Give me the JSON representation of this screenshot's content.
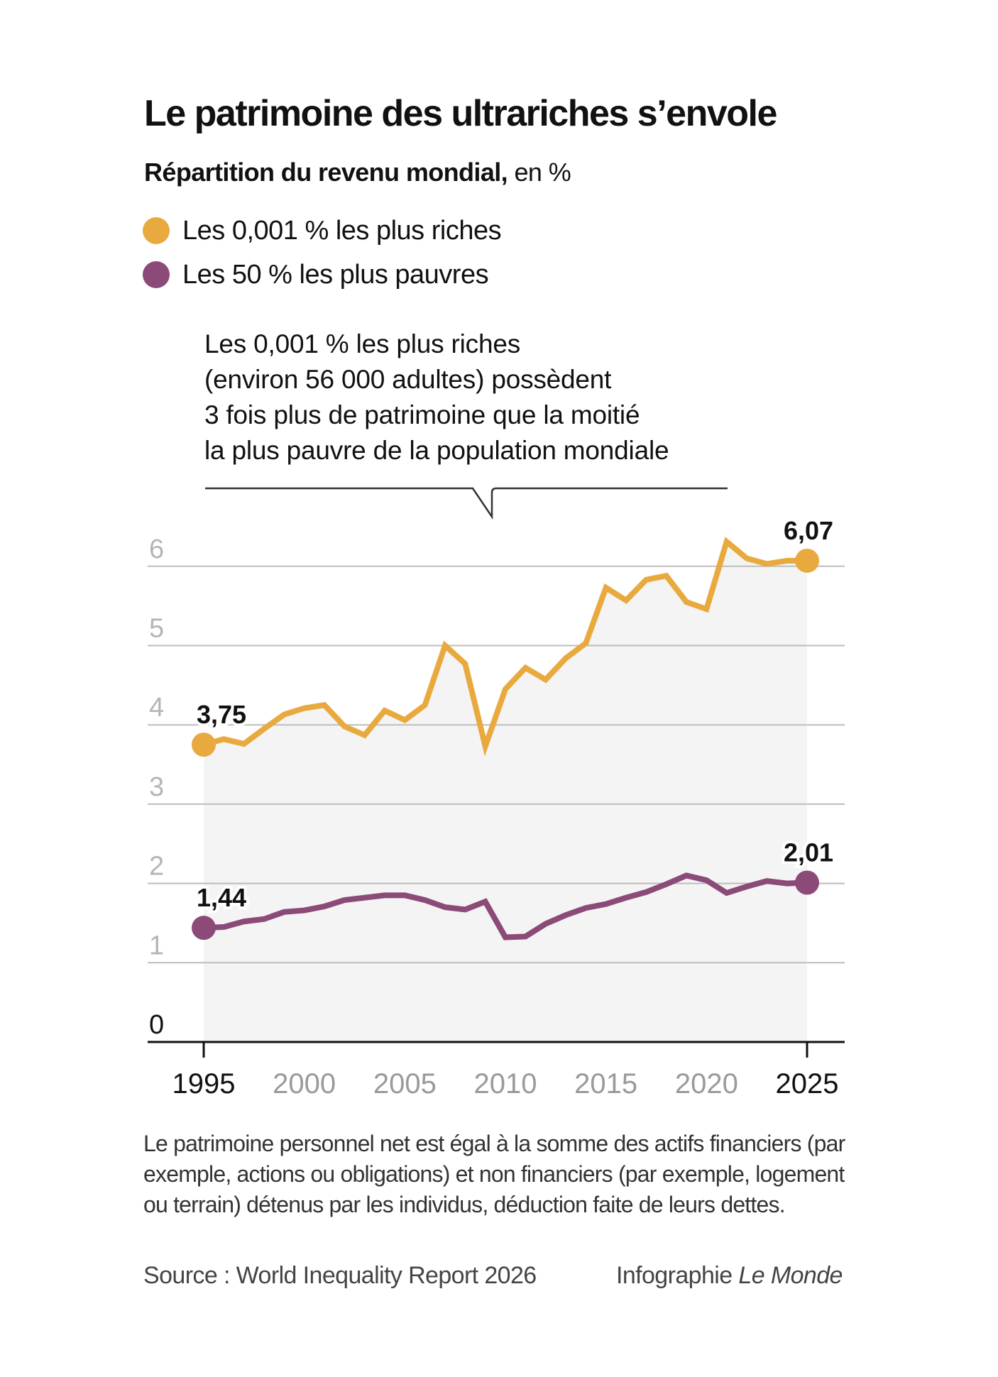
{
  "title": "Le patrimoine des ultrariches s’envole",
  "subtitle_bold": "Répartition du revenu mondial,",
  "subtitle_rest": " en %",
  "annotation": [
    "Les 0,001 % les plus riches",
    "(environ 56 000 adultes) possèdent",
    "3 fois plus de patrimoine que la moitié",
    "la plus pauvre de la population mondiale"
  ],
  "footnote": "Le patrimoine personnel net est égal à la somme des actifs financiers (par exemple, actions ou obligations) et non financiers (par exemple, logement ou terrain) détenus par les individus, déduction faite de leurs dettes.",
  "source": "Source : World Inequality Report 2026",
  "credit_prefix": "Infographie ",
  "credit_brand": "Le Monde",
  "chart_data": {
    "type": "line",
    "title": "Le patrimoine des ultrariches s’envole",
    "subtitle": "Répartition du revenu mondial, en %",
    "xlabel": "",
    "ylabel": "",
    "ylim": [
      0,
      6.5
    ],
    "yticks": [
      "0",
      "1",
      "2",
      "3",
      "4",
      "5",
      "6"
    ],
    "xticks": [
      "1995",
      "2000",
      "2005",
      "2010",
      "2015",
      "2020",
      "2025"
    ],
    "xticks_emphasized": [
      "1995",
      "2025"
    ],
    "grid": true,
    "legend_position": "top-left",
    "x": [
      1995,
      1996,
      1997,
      1998,
      1999,
      2000,
      2001,
      2002,
      2003,
      2004,
      2005,
      2006,
      2007,
      2008,
      2009,
      2010,
      2011,
      2012,
      2013,
      2014,
      2015,
      2016,
      2017,
      2018,
      2019,
      2020,
      2021,
      2022,
      2023,
      2024,
      2025
    ],
    "series": [
      {
        "name": "Les 0,001 % les plus riches",
        "color": "#E8AA3E",
        "values": [
          3.75,
          3.82,
          3.76,
          3.95,
          4.13,
          4.21,
          4.25,
          3.98,
          3.87,
          4.18,
          4.06,
          4.25,
          5.0,
          4.77,
          3.73,
          4.45,
          4.72,
          4.57,
          4.84,
          5.03,
          5.73,
          5.57,
          5.83,
          5.88,
          5.55,
          5.46,
          6.31,
          6.1,
          6.03,
          6.07,
          6.07
        ],
        "start_label": "3,75",
        "end_label": "6,07"
      },
      {
        "name": "Les 50 % les plus pauvres",
        "color": "#8B4A78",
        "values": [
          1.44,
          1.45,
          1.52,
          1.55,
          1.64,
          1.66,
          1.71,
          1.79,
          1.82,
          1.85,
          1.85,
          1.79,
          1.7,
          1.67,
          1.77,
          1.32,
          1.33,
          1.49,
          1.6,
          1.69,
          1.74,
          1.82,
          1.89,
          1.99,
          2.1,
          2.04,
          1.88,
          1.96,
          2.03,
          2.0,
          2.01
        ],
        "start_label": "1,44",
        "end_label": "2,01"
      }
    ],
    "shaded_range_x": [
      1995,
      2025
    ]
  }
}
